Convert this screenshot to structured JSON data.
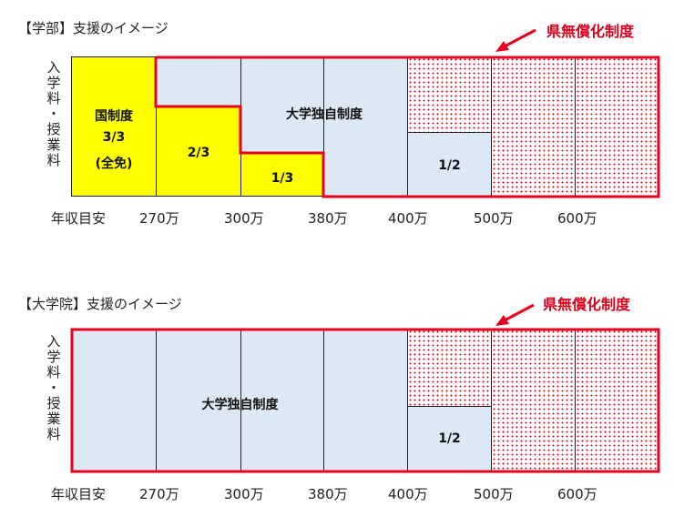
{
  "colors": {
    "prefecture_outline": "#e8001c",
    "national_fill": "#ffff00",
    "university_fill": "#dce9f4",
    "dot_fill": "#e8001c"
  },
  "x_axis_labels": [
    "年収目安",
    "270万",
    "300万",
    "380万",
    "400万",
    "500万",
    "600万"
  ],
  "y_axis_label": [
    "入",
    "学",
    "料",
    "・",
    "授",
    "業",
    "料"
  ],
  "undergrad": {
    "heading": "【学部】支援のイメージ",
    "prefecture_label": "県無償化制度",
    "national_label_1": "国制度",
    "national_label_2": "3/3",
    "national_label_3": "(全免)",
    "two_thirds": "2/3",
    "one_third": "1/3",
    "university_label": "大学独自制度",
    "half_label": "1/2"
  },
  "graduate": {
    "heading": "【大学院】支援のイメージ",
    "prefecture_label": "県無償化制度",
    "university_label": "大学独自制度",
    "half_label": "1/2"
  }
}
